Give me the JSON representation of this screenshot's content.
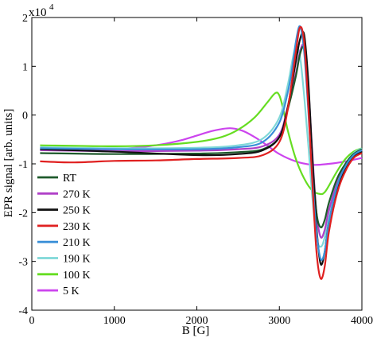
{
  "chart_data": {
    "type": "line",
    "xlabel": "B [G]",
    "ylabel": "EPR signal [arb. units]",
    "xlim": [
      0,
      4000
    ],
    "ylim": [
      -4,
      2
    ],
    "y_multiplier": "x10",
    "y_exponent": "4",
    "x_ticks": [
      {
        "value": 0,
        "label": "0"
      },
      {
        "value": 1000,
        "label": "1000"
      },
      {
        "value": 2000,
        "label": "2000"
      },
      {
        "value": 3000,
        "label": "3000"
      },
      {
        "value": 4000,
        "label": "4000"
      }
    ],
    "y_ticks": [
      {
        "value": 2,
        "label": "2"
      },
      {
        "value": 1,
        "label": "1"
      },
      {
        "value": 0,
        "label": "0"
      },
      {
        "value": -1,
        "label": "-1"
      },
      {
        "value": -2,
        "label": "-2"
      },
      {
        "value": -3,
        "label": "-3"
      },
      {
        "value": -4,
        "label": "-4"
      }
    ],
    "grid": false,
    "legend_position": "lower-left",
    "series": [
      {
        "name": "RT",
        "color": "#1e5a2c",
        "x": [
          100,
          1000,
          2000,
          2500,
          2800,
          3000,
          3100,
          3200,
          3250,
          3300,
          3350,
          3400,
          3450,
          3500,
          3550,
          3600,
          3700,
          3800,
          3900,
          4000
        ],
        "y": [
          -0.78,
          -0.8,
          -0.79,
          -0.76,
          -0.7,
          -0.45,
          0.1,
          0.8,
          1.25,
          1.35,
          0.5,
          -0.9,
          -2.0,
          -2.3,
          -2.15,
          -1.8,
          -1.3,
          -1.0,
          -0.8,
          -0.7
        ]
      },
      {
        "name": "270 K",
        "color": "#b040c8",
        "x": [
          100,
          1000,
          2000,
          2500,
          2800,
          3000,
          3100,
          3200,
          3250,
          3300,
          3350,
          3400,
          3450,
          3500,
          3550,
          3600,
          3700,
          3800,
          3900,
          4000
        ],
        "y": [
          -0.72,
          -0.74,
          -0.73,
          -0.7,
          -0.64,
          -0.4,
          0.15,
          0.85,
          1.3,
          1.4,
          0.6,
          -0.8,
          -2.0,
          -2.5,
          -2.35,
          -1.95,
          -1.4,
          -1.05,
          -0.82,
          -0.72
        ]
      },
      {
        "name": "250 K",
        "color": "#111111",
        "x": [
          100,
          1000,
          2000,
          2500,
          2800,
          3000,
          3100,
          3200,
          3250,
          3300,
          3350,
          3400,
          3450,
          3500,
          3550,
          3600,
          3700,
          3800,
          3900,
          4000
        ],
        "y": [
          -0.7,
          -0.75,
          -0.82,
          -0.8,
          -0.72,
          -0.45,
          0.15,
          1.1,
          1.55,
          1.65,
          0.7,
          -0.9,
          -2.3,
          -3.05,
          -2.8,
          -2.2,
          -1.5,
          -1.1,
          -0.85,
          -0.75
        ]
      },
      {
        "name": "230 K",
        "color": "#e02020",
        "x": [
          100,
          500,
          1000,
          1500,
          2000,
          2500,
          2800,
          3000,
          3100,
          3200,
          3250,
          3300,
          3350,
          3400,
          3450,
          3500,
          3550,
          3600,
          3700,
          3800,
          3900,
          4000
        ],
        "y": [
          -0.95,
          -0.97,
          -0.94,
          -0.93,
          -0.9,
          -0.88,
          -0.82,
          -0.55,
          0.1,
          1.3,
          1.8,
          1.5,
          0.2,
          -1.4,
          -2.8,
          -3.35,
          -3.1,
          -2.4,
          -1.6,
          -1.15,
          -0.88,
          -0.78
        ]
      },
      {
        "name": "210 K",
        "color": "#3a90d8",
        "x": [
          100,
          1000,
          2000,
          2500,
          2800,
          3000,
          3100,
          3150,
          3200,
          3250,
          3300,
          3350,
          3400,
          3450,
          3500,
          3550,
          3600,
          3700,
          3800,
          3900,
          4000
        ],
        "y": [
          -0.68,
          -0.7,
          -0.7,
          -0.66,
          -0.55,
          -0.15,
          0.45,
          0.9,
          1.5,
          1.82,
          1.3,
          0.1,
          -1.3,
          -2.4,
          -2.95,
          -2.8,
          -2.2,
          -1.45,
          -1.05,
          -0.82,
          -0.72
        ]
      },
      {
        "name": "190 K",
        "color": "#7fd8d8",
        "x": [
          100,
          1000,
          2000,
          2500,
          2800,
          3000,
          3100,
          3150,
          3200,
          3250,
          3300,
          3350,
          3400,
          3450,
          3500,
          3550,
          3600,
          3700,
          3800,
          3900,
          4000
        ],
        "y": [
          -0.66,
          -0.68,
          -0.67,
          -0.62,
          -0.48,
          -0.05,
          0.6,
          1.05,
          1.4,
          1.2,
          0.4,
          -0.6,
          -1.7,
          -2.5,
          -2.7,
          -2.5,
          -2.0,
          -1.35,
          -1.0,
          -0.78,
          -0.68
        ]
      },
      {
        "name": "100 K",
        "color": "#66dd22",
        "x": [
          100,
          1000,
          1500,
          2000,
          2300,
          2500,
          2700,
          2850,
          2950,
          3000,
          3050,
          3100,
          3200,
          3300,
          3400,
          3500,
          3550,
          3600,
          3700,
          3800,
          3900,
          4000
        ],
        "y": [
          -0.62,
          -0.64,
          -0.62,
          -0.55,
          -0.45,
          -0.3,
          -0.05,
          0.25,
          0.45,
          0.4,
          0.1,
          -0.3,
          -0.9,
          -1.3,
          -1.55,
          -1.62,
          -1.58,
          -1.45,
          -1.15,
          -0.9,
          -0.75,
          -0.68
        ]
      },
      {
        "name": "5 K",
        "color": "#cc44ee",
        "x": [
          100,
          1000,
          1500,
          1800,
          2000,
          2200,
          2400,
          2550,
          2700,
          2850,
          3000,
          3200,
          3400,
          3600,
          3800,
          4000
        ],
        "y": [
          -0.7,
          -0.7,
          -0.62,
          -0.52,
          -0.42,
          -0.32,
          -0.27,
          -0.32,
          -0.45,
          -0.62,
          -0.8,
          -0.95,
          -1.02,
          -1.0,
          -0.95,
          -0.88
        ]
      }
    ]
  }
}
